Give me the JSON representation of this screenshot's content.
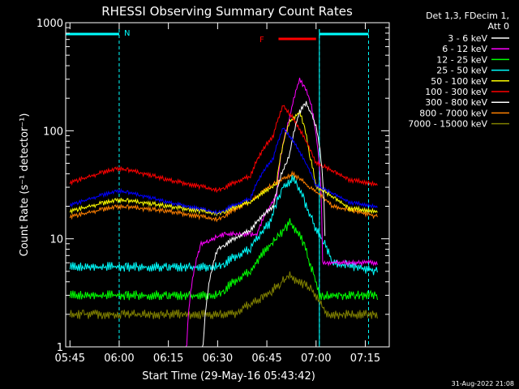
{
  "chart_data": {
    "type": "line",
    "title": "RHESSI Observing Summary Count Rates",
    "xlabel": "Start Time (29-May-16 05:43:42)",
    "ylabel": "Count Rate (s⁻¹ detector⁻¹)",
    "x_ticks": [
      "05:45",
      "06:00",
      "06:15",
      "06:30",
      "06:45",
      "07:00",
      "07:15"
    ],
    "y_ticks": [
      "1",
      "10",
      "100",
      "1000"
    ],
    "y_scale": "log",
    "ylim": [
      1,
      1000
    ],
    "grid": false,
    "legend_position": "top-right",
    "legend_header": [
      "Det 1,3, FDecim 1,",
      "Att 0"
    ],
    "timestamp": "31-Aug-2022 21:08",
    "annotations": {
      "night_label": "N",
      "flare_label": "F"
    },
    "series": [
      {
        "name": "3 - 6 keV",
        "color": "#ffffff",
        "points": [
          [
            "05:45",
            0
          ],
          [
            "06:25",
            0
          ],
          [
            "06:30",
            8
          ],
          [
            "06:40",
            12
          ],
          [
            "06:47",
            20
          ],
          [
            "06:52",
            60
          ],
          [
            "06:55",
            150
          ],
          [
            "06:57",
            180
          ],
          [
            "07:00",
            110
          ],
          [
            "07:03",
            0
          ]
        ]
      },
      {
        "name": "6 - 12 keV",
        "color": "#ff00ff",
        "points": [
          [
            "05:45",
            0
          ],
          [
            "06:20",
            0
          ],
          [
            "06:25",
            9
          ],
          [
            "06:32",
            11
          ],
          [
            "06:42",
            11
          ],
          [
            "06:48",
            25
          ],
          [
            "06:52",
            130
          ],
          [
            "06:55",
            300
          ],
          [
            "06:58",
            200
          ],
          [
            "07:00",
            90
          ],
          [
            "07:02",
            6
          ],
          [
            "07:19",
            6
          ]
        ]
      },
      {
        "name": "12 - 25 keV",
        "color": "#00ff00",
        "points": [
          [
            "05:45",
            3
          ],
          [
            "06:30",
            3
          ],
          [
            "06:40",
            5
          ],
          [
            "06:48",
            10
          ],
          [
            "06:52",
            14
          ],
          [
            "06:55",
            11
          ],
          [
            "06:58",
            6
          ],
          [
            "07:01",
            3
          ],
          [
            "07:19",
            3
          ]
        ]
      },
      {
        "name": "25 - 50 keV",
        "color": "#00ffff",
        "points": [
          [
            "05:45",
            5.5
          ],
          [
            "06:30",
            5.5
          ],
          [
            "06:40",
            8
          ],
          [
            "06:46",
            14
          ],
          [
            "06:50",
            30
          ],
          [
            "06:53",
            36
          ],
          [
            "06:57",
            20
          ],
          [
            "07:00",
            12
          ],
          [
            "07:05",
            6
          ],
          [
            "07:19",
            5
          ]
        ]
      },
      {
        "name": "50 - 100 keV",
        "color": "#ffff00",
        "points": [
          [
            "05:45",
            18
          ],
          [
            "06:00",
            23
          ],
          [
            "06:15",
            20
          ],
          [
            "06:30",
            17
          ],
          [
            "06:40",
            22
          ],
          [
            "06:48",
            32
          ],
          [
            "06:52",
            120
          ],
          [
            "06:55",
            150
          ],
          [
            "06:58",
            60
          ],
          [
            "07:00",
            30
          ],
          [
            "07:10",
            19
          ],
          [
            "07:19",
            18
          ]
        ]
      },
      {
        "name": "100 - 300 keV",
        "color": "#ff0000",
        "points": [
          [
            "05:45",
            33
          ],
          [
            "06:00",
            45
          ],
          [
            "06:15",
            35
          ],
          [
            "06:30",
            28
          ],
          [
            "06:40",
            38
          ],
          [
            "06:47",
            90
          ],
          [
            "06:50",
            170
          ],
          [
            "06:53",
            130
          ],
          [
            "06:56",
            90
          ],
          [
            "07:00",
            50
          ],
          [
            "07:10",
            35
          ],
          [
            "07:19",
            32
          ]
        ]
      },
      {
        "name": "300 - 800 keV",
        "color": "#ffffff",
        "points": []
      },
      {
        "name": "800 - 7000 keV",
        "color": "#ff8000",
        "points": [
          [
            "05:45",
            16
          ],
          [
            "06:00",
            20
          ],
          [
            "06:15",
            18
          ],
          [
            "06:30",
            15
          ],
          [
            "06:40",
            22
          ],
          [
            "06:50",
            36
          ],
          [
            "06:53",
            40
          ],
          [
            "06:58",
            30
          ],
          [
            "07:05",
            20
          ],
          [
            "07:19",
            16
          ]
        ]
      },
      {
        "name": "7000 - 15000 keV",
        "color": "#808000",
        "points": [
          [
            "05:45",
            2
          ],
          [
            "06:35",
            2
          ],
          [
            "06:45",
            3
          ],
          [
            "06:52",
            4.5
          ],
          [
            "06:58",
            3.5
          ],
          [
            "07:03",
            2
          ],
          [
            "07:19",
            2
          ]
        ]
      }
    ]
  },
  "colors": {
    "background": "#000000",
    "axes": "#ffffff",
    "night_marker": "#00ffff",
    "flare_marker": "#ff0000",
    "blue_band": "#0000ff"
  }
}
